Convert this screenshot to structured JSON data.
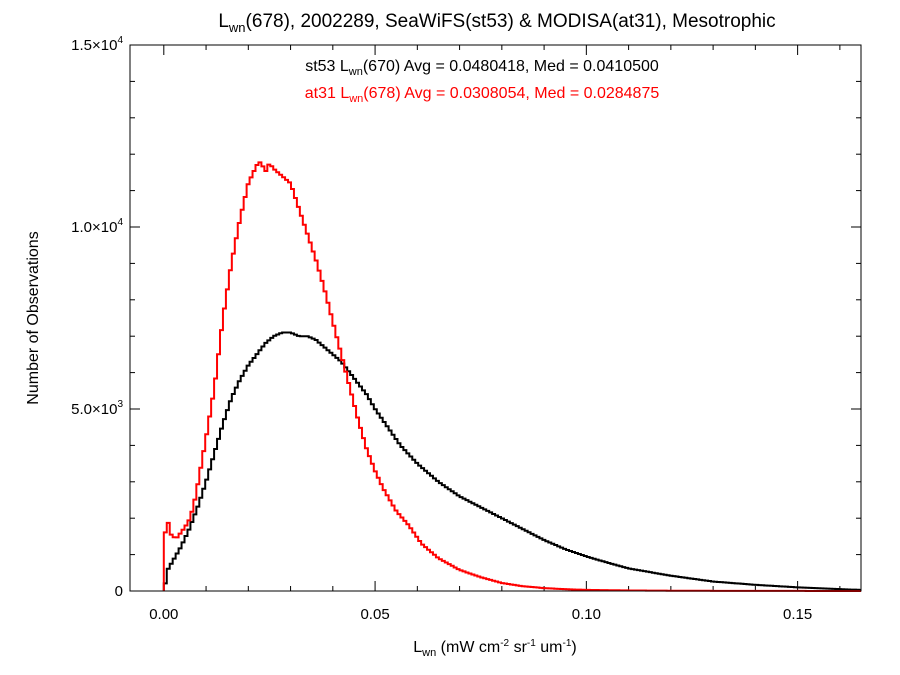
{
  "chart_data": {
    "type": "line",
    "title": {
      "main": "L",
      "sub": "wn",
      "rest": "(678), 2002289, SeaWiFS(st53) & MODISA(at31), Mesotrophic"
    },
    "xlabel": {
      "main": "L",
      "sub": "wn",
      "u1": " (mW cm",
      "e1": "-2",
      "u2": " sr",
      "e2": "-1",
      "u3": " um",
      "e3": "-1",
      "u4": ")"
    },
    "ylabel": "Number of Observations",
    "xlim": [
      -0.008,
      0.165
    ],
    "ylim": [
      0,
      15000
    ],
    "x_ticks": [
      {
        "value": 0.0,
        "label": "0.00"
      },
      {
        "value": 0.05,
        "label": "0.05"
      },
      {
        "value": 0.1,
        "label": "0.10"
      },
      {
        "value": 0.15,
        "label": "0.15"
      }
    ],
    "y_ticks": [
      {
        "value": 0,
        "mant": "0",
        "exp": ""
      },
      {
        "value": 5000,
        "mant": "5.0×10",
        "exp": "3"
      },
      {
        "value": 10000,
        "mant": "1.0×10",
        "exp": "4"
      },
      {
        "value": 15000,
        "mant": "1.5×10",
        "exp": "4"
      }
    ],
    "annotations": [
      {
        "prefix": "st53 L",
        "sub": "wn",
        "rest": "(670) Avg = 0.0480418, Med = 0.0410500",
        "color": "#000000"
      },
      {
        "prefix": "at31 L",
        "sub": "wn",
        "rest": "(678) Avg = 0.0308054, Med = 0.0284875",
        "color": "#ff0000"
      }
    ],
    "series": [
      {
        "color": "#000000",
        "x": [
          0.0,
          0.001,
          0.002,
          0.004,
          0.006,
          0.008,
          0.01,
          0.012,
          0.014,
          0.016,
          0.018,
          0.02,
          0.022,
          0.024,
          0.026,
          0.028,
          0.03,
          0.032,
          0.034,
          0.036,
          0.038,
          0.04,
          0.042,
          0.044,
          0.046,
          0.048,
          0.05,
          0.053,
          0.056,
          0.06,
          0.065,
          0.07,
          0.075,
          0.08,
          0.085,
          0.09,
          0.095,
          0.1,
          0.105,
          0.11,
          0.12,
          0.13,
          0.14,
          0.15,
          0.16,
          0.165
        ],
        "y": [
          0,
          600,
          800,
          1200,
          1700,
          2300,
          3000,
          3800,
          4600,
          5300,
          5800,
          6200,
          6500,
          6800,
          7000,
          7100,
          7100,
          7000,
          7000,
          6900,
          6700,
          6500,
          6300,
          6000,
          5700,
          5400,
          5000,
          4500,
          4000,
          3500,
          3000,
          2600,
          2300,
          2000,
          1700,
          1400,
          1150,
          950,
          780,
          620,
          420,
          260,
          170,
          100,
          50,
          30
        ]
      },
      {
        "color": "#ff0000",
        "x": [
          0.0,
          0.0005,
          0.001,
          0.0015,
          0.002,
          0.003,
          0.004,
          0.005,
          0.006,
          0.007,
          0.008,
          0.01,
          0.012,
          0.014,
          0.016,
          0.018,
          0.02,
          0.022,
          0.023,
          0.024,
          0.025,
          0.026,
          0.028,
          0.03,
          0.032,
          0.034,
          0.036,
          0.038,
          0.04,
          0.042,
          0.044,
          0.046,
          0.048,
          0.05,
          0.052,
          0.055,
          0.058,
          0.061,
          0.065,
          0.07,
          0.075,
          0.08,
          0.085,
          0.09,
          0.095,
          0.1,
          0.11,
          0.12,
          0.13,
          0.14,
          0.15,
          0.16,
          0.165
        ],
        "y": [
          0,
          2300,
          1900,
          1600,
          1500,
          1450,
          1600,
          1750,
          1950,
          2300,
          2900,
          4200,
          5600,
          7500,
          9000,
          10200,
          11200,
          11700,
          11800,
          11500,
          11750,
          11600,
          11400,
          11200,
          10500,
          9800,
          9100,
          8300,
          7400,
          6500,
          5600,
          4700,
          3900,
          3300,
          2800,
          2200,
          1800,
          1300,
          900,
          580,
          380,
          220,
          130,
          80,
          50,
          30,
          15,
          8,
          5,
          3,
          2,
          1,
          0
        ]
      }
    ]
  }
}
